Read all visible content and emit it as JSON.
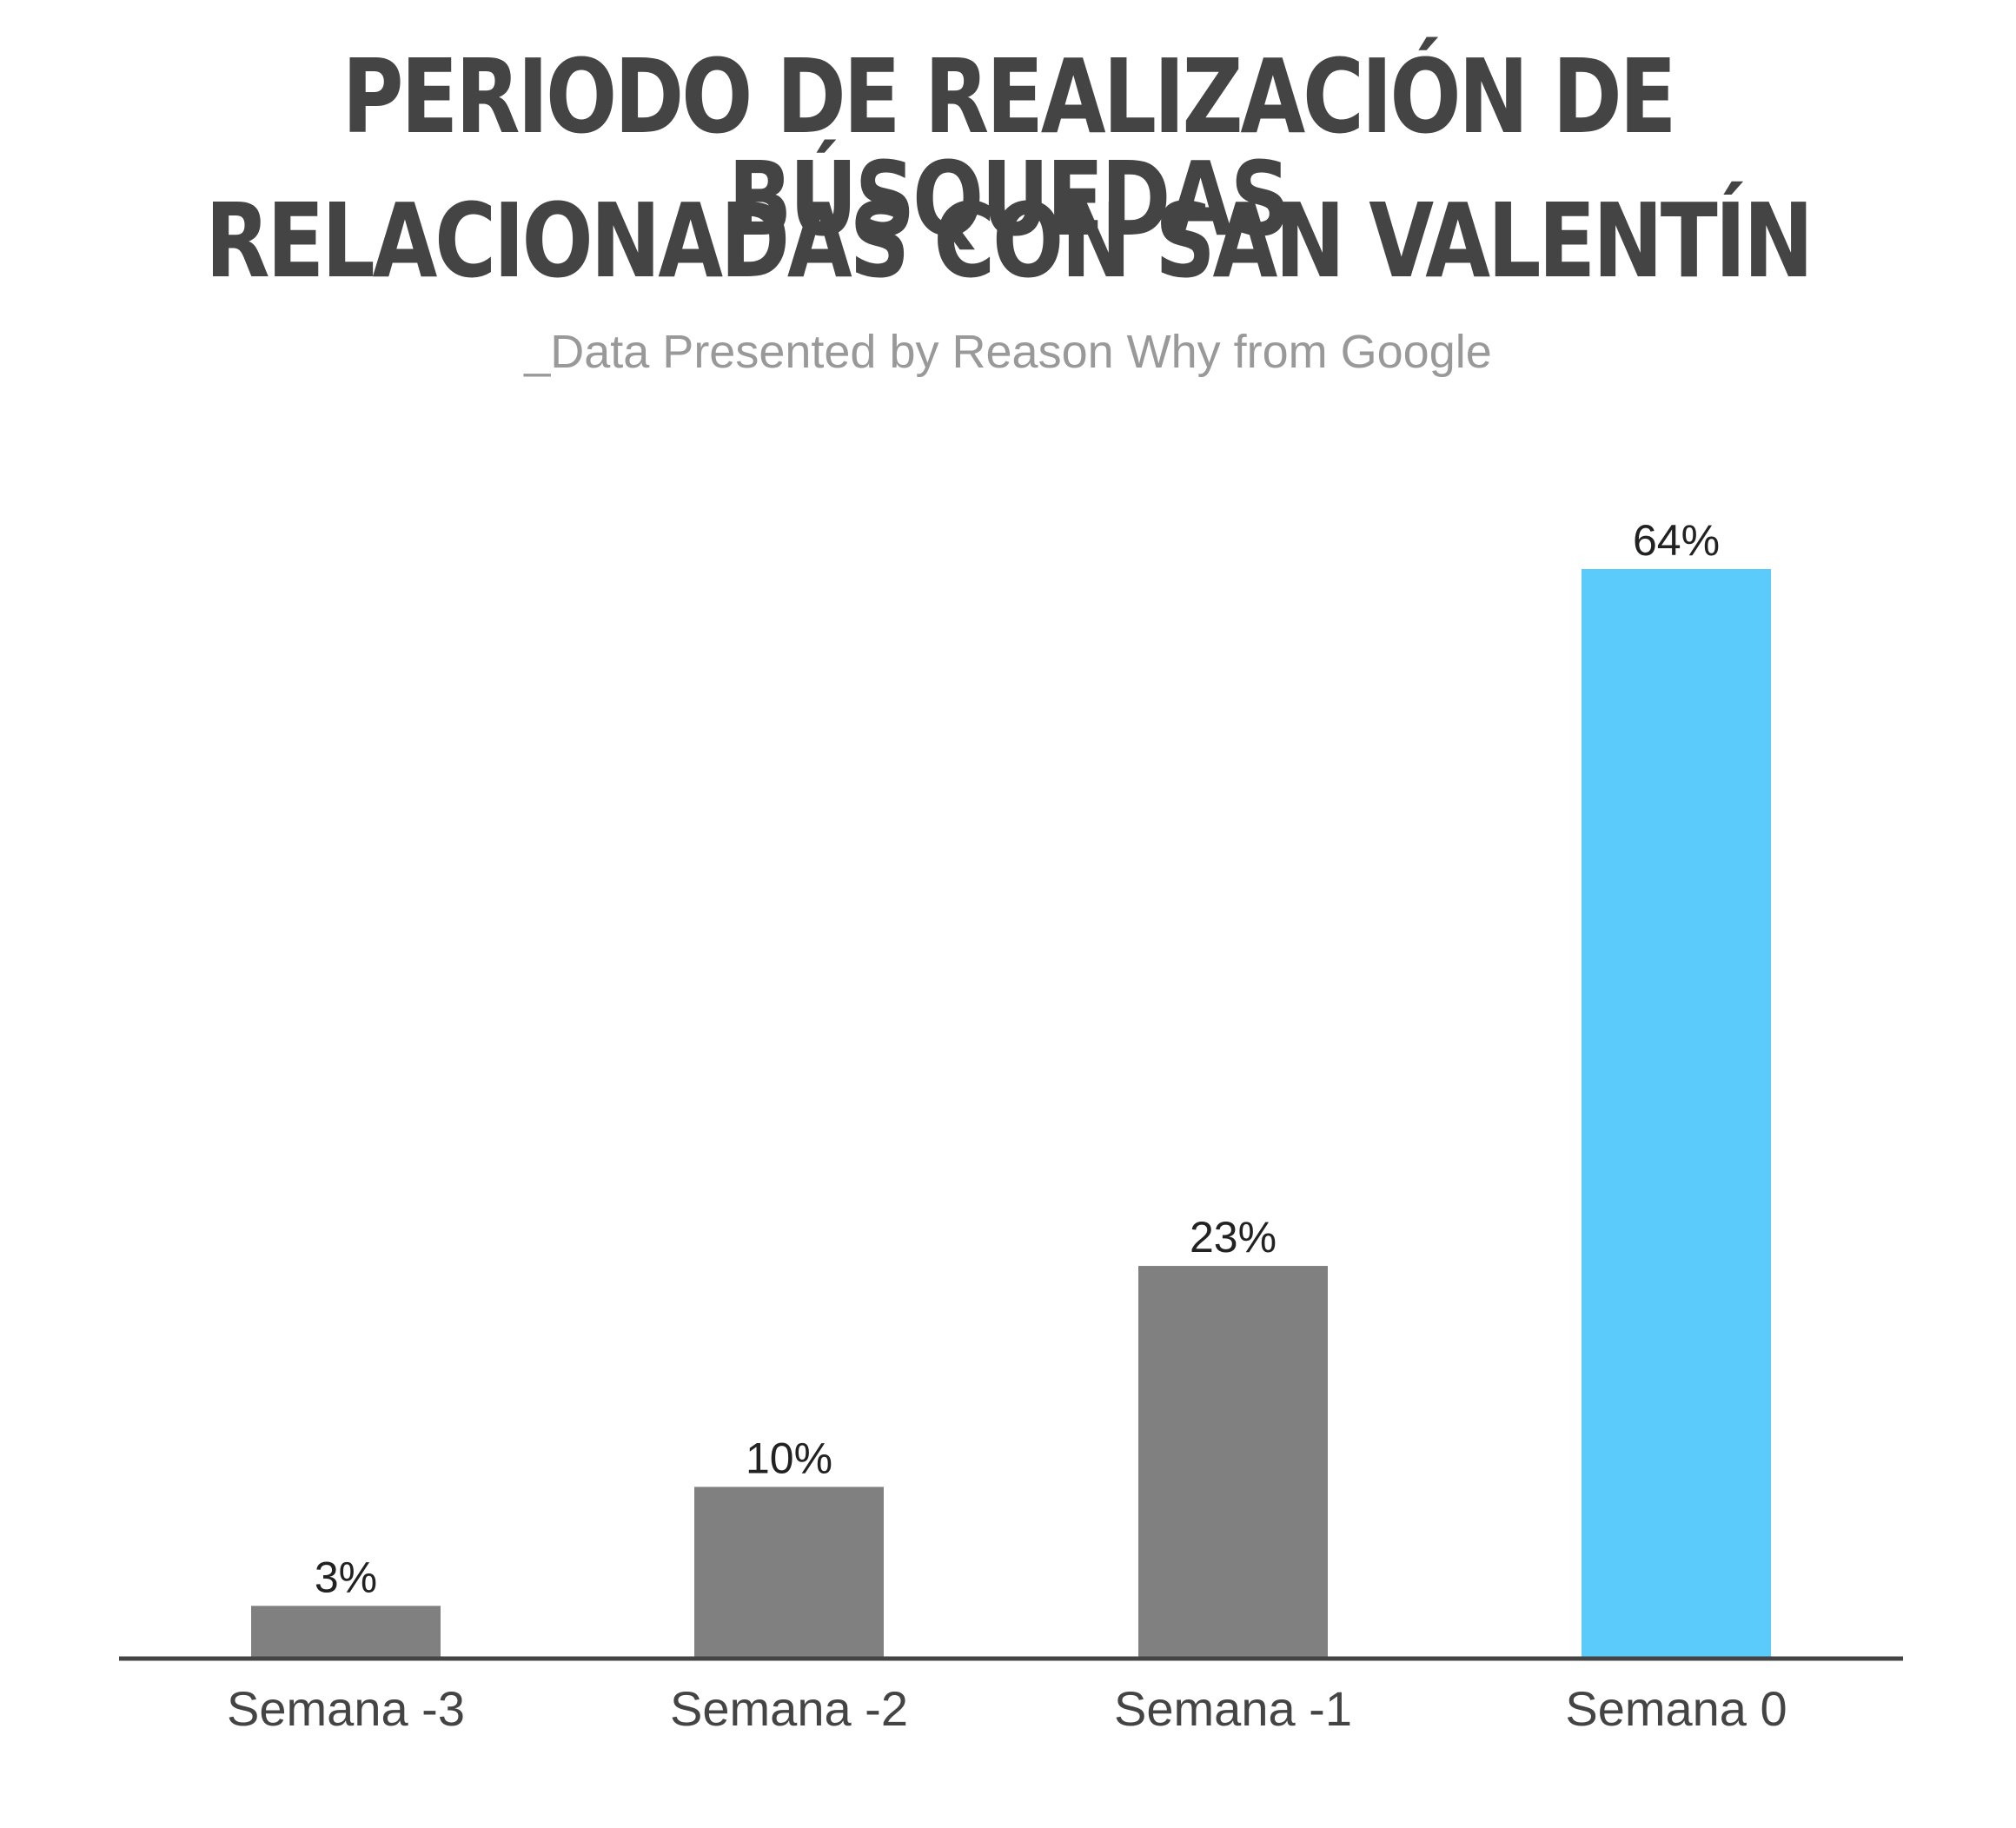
{
  "header": {
    "title_line_1": "PERIODO DE REALIZACIÓN DE BÚSQUEDAS",
    "title_line_2": "RELACIONADAS CON SAN VALENTÍN",
    "subtitle": "_Data Presented by Reason Why from Google"
  },
  "chart_data": {
    "type": "bar",
    "title": "PERIODO DE REALIZACIÓN DE BÚSQUEDAS RELACIONADAS CON SAN VALENTÍN",
    "subtitle": "_Data Presented by Reason Why from Google",
    "categories": [
      "Semana -3",
      "Semana -2",
      "Semana -1",
      "Semana 0"
    ],
    "values": [
      3,
      10,
      23,
      64
    ],
    "value_labels": [
      "3%",
      "10%",
      "23%",
      "64%"
    ],
    "colors": [
      "#808080",
      "#808080",
      "#808080",
      "#5bcbfc"
    ],
    "axis_color": "#444444",
    "ylim": [
      0,
      64
    ],
    "grid": false,
    "legend": "none"
  }
}
